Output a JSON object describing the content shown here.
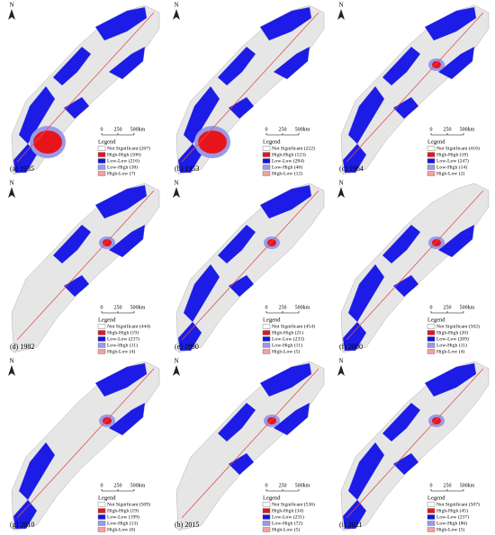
{
  "scale": {
    "zero": "0",
    "mid": "250",
    "end": "500km"
  },
  "north": "N",
  "panels": [
    {
      "label": "(a) 1935",
      "legend": {
        "title": "Legend",
        "items": [
          "Not Significant (267)",
          "High-High (106)",
          "Low-Low (216)",
          "Low-High (38)",
          "High-Low (7)"
        ]
      }
    },
    {
      "label": "(b) 1953",
      "legend": {
        "title": "Legend",
        "items": [
          "Not Significant (222)",
          "High-High (123)",
          "Low-Low (284)",
          "Low-High (46)",
          "High-Low (12)"
        ]
      }
    },
    {
      "label": "(c) 1964",
      "legend": {
        "title": "Legend",
        "items": [
          "Not Significant (416)",
          "High-High (18)",
          "Low-Low (247)",
          "Low-High (14)",
          "High-Low (2)"
        ]
      }
    },
    {
      "label": "(d) 1982",
      "legend": {
        "title": "Legend",
        "items": [
          "Not Significant (444)",
          "High-High (19)",
          "Low-Low (237)",
          "Low-High (11)",
          "High-Low (4)"
        ]
      }
    },
    {
      "label": "(e) 1990",
      "legend": {
        "title": "Legend",
        "items": [
          "Not Significant (454)",
          "High-High (21)",
          "Low-Low (233)",
          "Low-High (11)",
          "High-Low (5)"
        ]
      }
    },
    {
      "label": "(f) 2000",
      "legend": {
        "title": "Legend",
        "items": [
          "Not Significant (502)",
          "High-High (20)",
          "Low-Low (209)",
          "Low-High (11)",
          "High-Low (4)"
        ]
      }
    },
    {
      "label": "(g) 2010",
      "legend": {
        "title": "Legend",
        "items": [
          "Not Significant (509)",
          "High-High (19)",
          "Low-Low (199)",
          "Low-High (13)",
          "High-Low (6)"
        ]
      }
    },
    {
      "label": "(h) 2015",
      "legend": {
        "title": "Legend",
        "items": [
          "Not Significant (536)",
          "High-High (34)",
          "Low-Low (231)",
          "Low-High (72)",
          "High-Low (5)"
        ]
      }
    },
    {
      "label": "(i) 2021",
      "legend": {
        "title": "Legend",
        "items": [
          "Not Significant (507)",
          "High-High (45)",
          "Low-Low (237)",
          "Low-High (86)",
          "High-Low (5)"
        ]
      }
    }
  ]
}
